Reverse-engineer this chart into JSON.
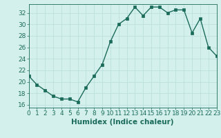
{
  "x": [
    0,
    1,
    2,
    3,
    4,
    5,
    6,
    7,
    8,
    9,
    10,
    11,
    12,
    13,
    14,
    15,
    16,
    17,
    18,
    19,
    20,
    21,
    22,
    23
  ],
  "y": [
    21,
    19.5,
    18.5,
    17.5,
    17.0,
    17.0,
    16.5,
    19.0,
    21.0,
    23.0,
    27.0,
    30.0,
    31.0,
    33.0,
    31.5,
    33.0,
    33.0,
    32.0,
    32.5,
    32.5,
    28.5,
    31.0,
    26.0,
    24.5
  ],
  "line_color": "#1a6b5a",
  "marker_color": "#1a6b5a",
  "bg_color": "#d4f0ec",
  "grid_color": "#b8ddd8",
  "xlabel": "Humidex (Indice chaleur)",
  "xlim": [
    0,
    23
  ],
  "ylim": [
    15.5,
    33.5
  ],
  "yticks": [
    16,
    18,
    20,
    22,
    24,
    26,
    28,
    30,
    32
  ],
  "xticks": [
    0,
    1,
    2,
    3,
    4,
    5,
    6,
    7,
    8,
    9,
    10,
    11,
    12,
    13,
    14,
    15,
    16,
    17,
    18,
    19,
    20,
    21,
    22,
    23
  ],
  "tick_labelsize": 6.5,
  "xlabel_fontsize": 7.5,
  "linewidth": 1.0,
  "markersize": 2.2
}
